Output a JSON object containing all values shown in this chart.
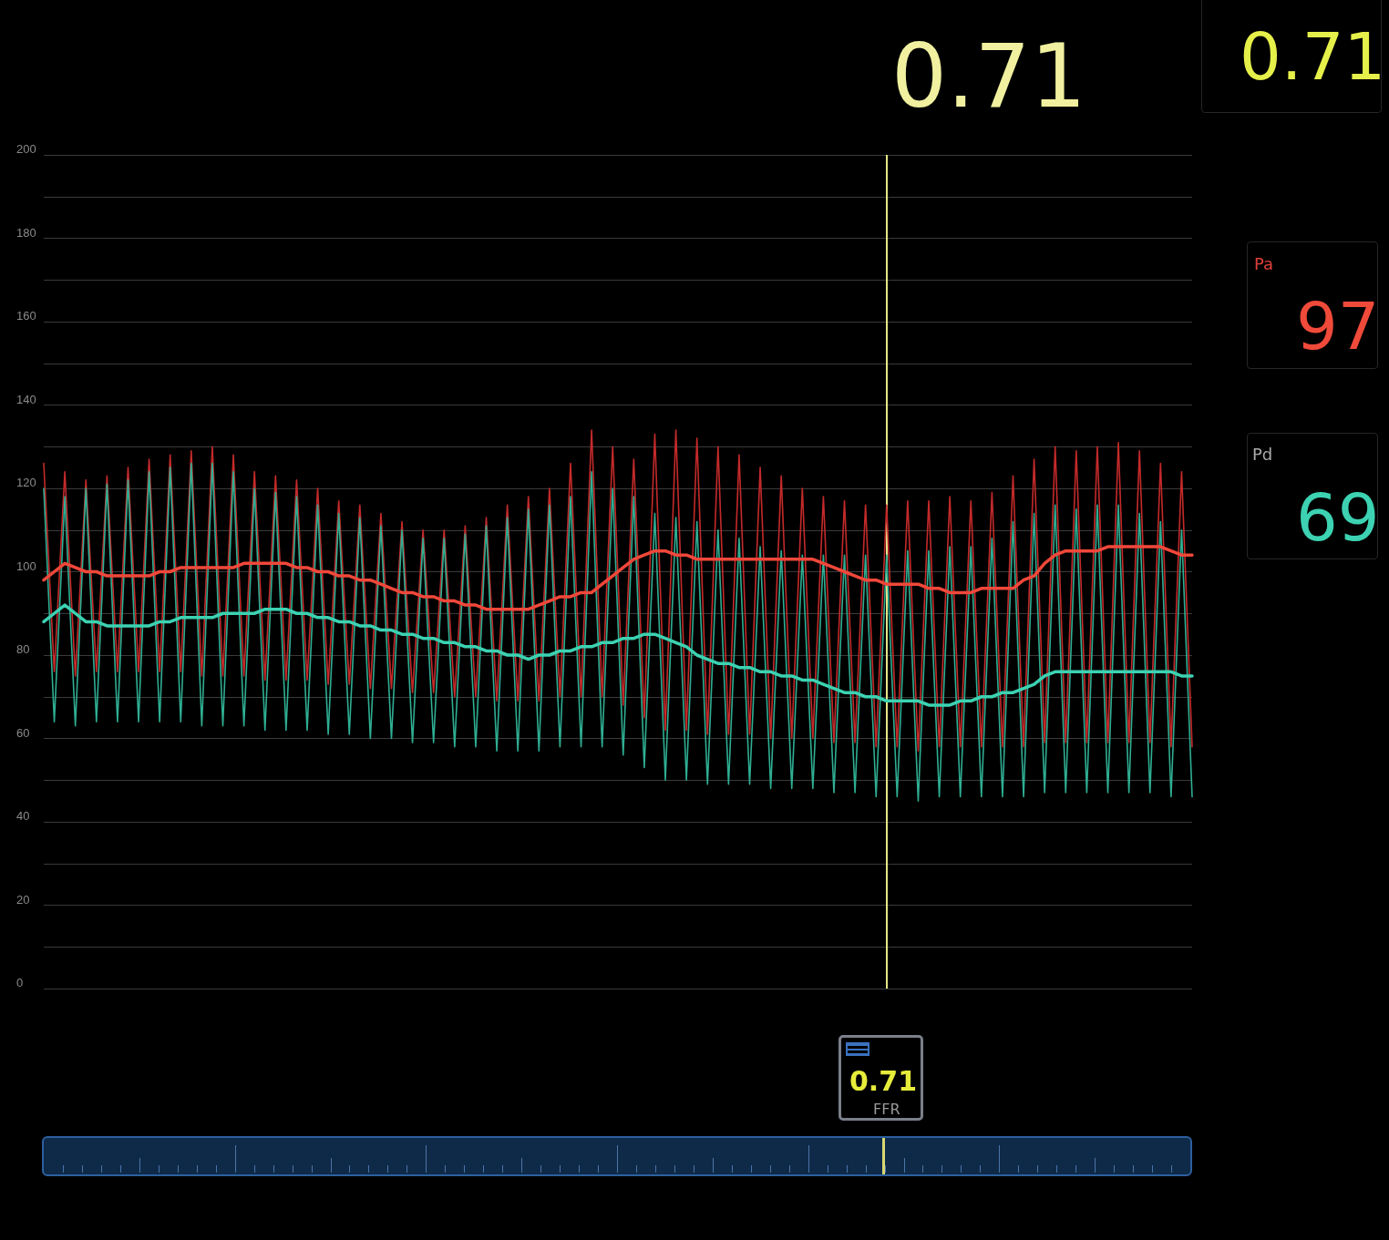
{
  "chart_data": {
    "type": "line",
    "categories": [
      null,
      null,
      null,
      null,
      null,
      null,
      null,
      null,
      null,
      null,
      null,
      null,
      null,
      null,
      null,
      null,
      null,
      null,
      null,
      null,
      null,
      null,
      null,
      null,
      null,
      null,
      null,
      null,
      null,
      null,
      null,
      null,
      null,
      null,
      null,
      null,
      null,
      null,
      null,
      null,
      null,
      null,
      null,
      null,
      null,
      null,
      null,
      null,
      null,
      null,
      null,
      null,
      null,
      null,
      null,
      null,
      null,
      null,
      null,
      null,
      null,
      null,
      null,
      null,
      null,
      null,
      null,
      null,
      null,
      null,
      null,
      null,
      null,
      null,
      null,
      null,
      null,
      null,
      null,
      null,
      null,
      null,
      null,
      null,
      null,
      null,
      null,
      null,
      null,
      null,
      null,
      null,
      null,
      null,
      null,
      null,
      null,
      null,
      null,
      null,
      null,
      null,
      null,
      null,
      null,
      null,
      null,
      null,
      null,
      null
    ],
    "series": [
      {
        "color": "#c42a2a",
        "values": [
          126,
          76,
          124,
          75,
          122,
          76,
          123,
          76,
          125,
          76,
          127,
          76,
          128,
          76,
          129,
          75,
          130,
          75,
          128,
          75,
          124,
          74,
          123,
          74,
          122,
          74,
          120,
          73,
          117,
          73,
          116,
          72,
          114,
          72,
          112,
          71,
          110,
          71,
          110,
          70,
          111,
          70,
          113,
          69,
          116,
          69,
          118,
          69,
          120,
          70,
          126,
          70,
          134,
          70,
          130,
          68,
          127,
          65,
          133,
          62,
          134,
          62,
          132,
          61,
          130,
          61,
          128,
          61,
          125,
          60,
          123,
          60,
          120,
          60,
          118,
          59,
          117,
          59,
          116,
          58,
          116,
          58,
          117,
          57,
          117,
          58,
          118,
          58,
          117,
          58,
          119,
          58,
          123,
          58,
          127,
          59,
          130,
          59,
          129,
          59,
          130,
          59,
          131,
          59,
          129,
          59,
          126,
          58,
          124,
          58
        ]
      },
      {
        "color": "#2fae92",
        "values": [
          120,
          64,
          118,
          63,
          120,
          64,
          121,
          64,
          122,
          64,
          124,
          64,
          125,
          64,
          126,
          63,
          126,
          63,
          124,
          63,
          120,
          62,
          119,
          62,
          118,
          62,
          116,
          61,
          114,
          61,
          113,
          60,
          111,
          60,
          110,
          59,
          108,
          59,
          108,
          58,
          109,
          58,
          111,
          57,
          113,
          57,
          115,
          57,
          116,
          58,
          118,
          58,
          124,
          58,
          120,
          56,
          118,
          53,
          114,
          50,
          113,
          50,
          112,
          49,
          110,
          49,
          108,
          49,
          106,
          48,
          105,
          48,
          104,
          48,
          104,
          47,
          104,
          47,
          104,
          46,
          104,
          46,
          105,
          45,
          105,
          46,
          106,
          46,
          106,
          46,
          108,
          46,
          112,
          46,
          114,
          47,
          116,
          47,
          115,
          47,
          116,
          47,
          116,
          47,
          114,
          47,
          112,
          46,
          110,
          46
        ]
      },
      {
        "color": "#f0483a",
        "values": [
          98,
          100,
          102,
          101,
          100,
          100,
          99,
          99,
          99,
          99,
          99,
          100,
          100,
          101,
          101,
          101,
          101,
          101,
          101,
          102,
          102,
          102,
          102,
          102,
          101,
          101,
          100,
          100,
          99,
          99,
          98,
          98,
          97,
          96,
          95,
          95,
          94,
          94,
          93,
          93,
          92,
          92,
          91,
          91,
          91,
          91,
          91,
          92,
          93,
          94,
          94,
          95,
          95,
          97,
          99,
          101,
          103,
          104,
          105,
          105,
          104,
          104,
          103,
          103,
          103,
          103,
          103,
          103,
          103,
          103,
          103,
          103,
          103,
          103,
          102,
          101,
          100,
          99,
          98,
          98,
          97,
          97,
          97,
          97,
          96,
          96,
          95,
          95,
          95,
          96,
          96,
          96,
          96,
          98,
          99,
          102,
          104,
          105,
          105,
          105,
          105,
          106,
          106,
          106,
          106,
          106,
          106,
          105,
          104,
          104
        ]
      },
      {
        "color": "#3cd2b2",
        "values": [
          88,
          90,
          92,
          90,
          88,
          88,
          87,
          87,
          87,
          87,
          87,
          88,
          88,
          89,
          89,
          89,
          89,
          90,
          90,
          90,
          90,
          91,
          91,
          91,
          90,
          90,
          89,
          89,
          88,
          88,
          87,
          87,
          86,
          86,
          85,
          85,
          84,
          84,
          83,
          83,
          82,
          82,
          81,
          81,
          80,
          80,
          79,
          80,
          80,
          81,
          81,
          82,
          82,
          83,
          83,
          84,
          84,
          85,
          85,
          84,
          83,
          82,
          80,
          79,
          78,
          78,
          77,
          77,
          76,
          76,
          75,
          75,
          74,
          74,
          73,
          72,
          71,
          71,
          70,
          70,
          69,
          69,
          69,
          69,
          68,
          68,
          68,
          69,
          69,
          70,
          70,
          71,
          71,
          72,
          73,
          75,
          76,
          76,
          76,
          76,
          76,
          76,
          76,
          76,
          76,
          76,
          76,
          76,
          75,
          75
        ]
      }
    ],
    "ylim": [
      0,
      200
    ],
    "yticks": [
      0,
      {
        "value": 10,
        "label": null
      },
      20,
      {
        "value": 30,
        "label": null
      },
      40,
      {
        "value": 50,
        "label": null
      },
      60,
      {
        "value": 70,
        "label": null
      },
      80,
      {
        "value": 90,
        "label": null
      },
      100,
      {
        "value": 110,
        "label": null
      },
      120,
      {
        "value": 130,
        "label": null
      },
      140,
      {
        "value": 150,
        "label": null
      },
      160,
      {
        "value": 170,
        "label": null
      },
      180,
      {
        "value": 190,
        "label": null
      },
      200
    ],
    "grid": "y",
    "tick_labels": "y",
    "marker": "none",
    "line_style": "solid",
    "annotations": [
      "0.71",
      "0.71",
      "Pa",
      "97",
      "Pd",
      "69",
      "0.71",
      "FFR"
    ]
  }
}
